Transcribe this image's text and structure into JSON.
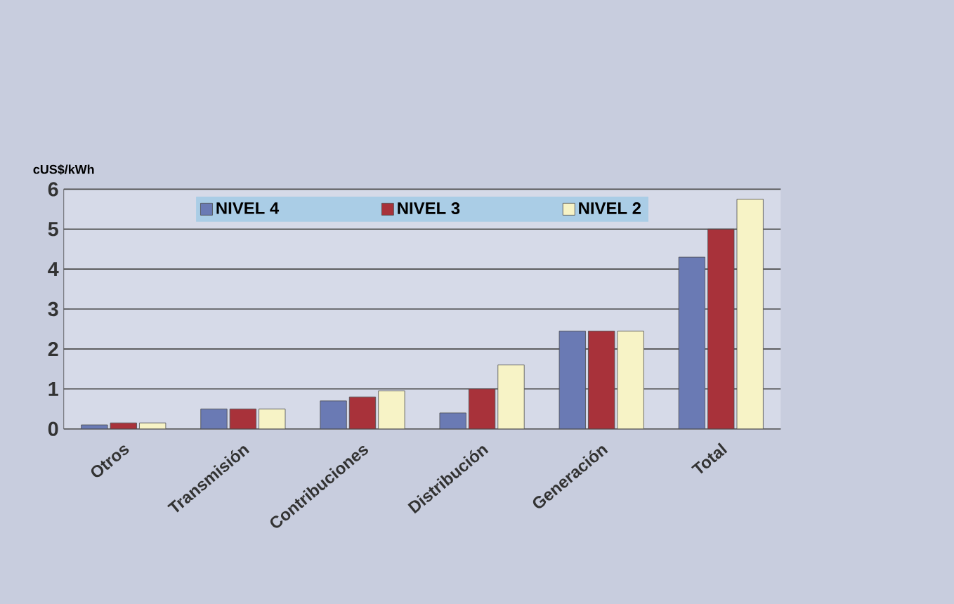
{
  "chart_data": {
    "type": "bar",
    "ylabel": "cUS$/kWh",
    "categories": [
      "Otros",
      "Transmisión",
      "Contribuciones",
      "Distribución",
      "Generación",
      "Total"
    ],
    "series": [
      {
        "name": "NIVEL 4",
        "color": "#6a7ab4",
        "values": [
          0.1,
          0.5,
          0.7,
          0.4,
          2.45,
          4.3
        ]
      },
      {
        "name": "NIVEL 3",
        "color": "#a8323a",
        "values": [
          0.15,
          0.5,
          0.8,
          1.0,
          2.45,
          5.0
        ]
      },
      {
        "name": "NIVEL 2",
        "color": "#f7f3c6",
        "values": [
          0.15,
          0.5,
          0.95,
          1.6,
          2.45,
          5.75
        ]
      }
    ],
    "ylim": [
      0,
      6
    ],
    "yticks": [
      0,
      1,
      2,
      3,
      4,
      5,
      6
    ],
    "grid": "y",
    "legend": "top"
  }
}
